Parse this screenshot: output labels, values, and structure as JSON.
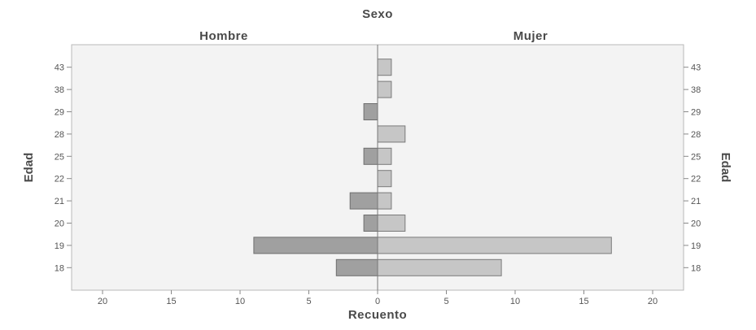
{
  "chart_data": {
    "type": "bar",
    "orientation": "horizontal",
    "title": "Sexo",
    "categories": [
      "18",
      "19",
      "20",
      "21",
      "22",
      "25",
      "28",
      "29",
      "38",
      "43"
    ],
    "series": [
      {
        "name": "Hombre",
        "values": [
          3,
          9,
          1,
          2,
          0,
          1,
          0,
          1,
          0,
          0
        ]
      },
      {
        "name": "Mujer",
        "values": [
          9,
          17,
          2,
          1,
          1,
          1,
          2,
          0,
          1,
          1
        ]
      }
    ],
    "xlabel": "Recuento",
    "ylabel": "Edad",
    "xlim": [
      0,
      20
    ],
    "xticks": [
      "20",
      "15",
      "10",
      "5",
      "0",
      "5",
      "10",
      "15",
      "20"
    ],
    "grid": false,
    "colors": {
      "Hombre": "#a0a0a0",
      "Mujer": "#c6c6c6",
      "background": "#f3f3f3"
    }
  }
}
